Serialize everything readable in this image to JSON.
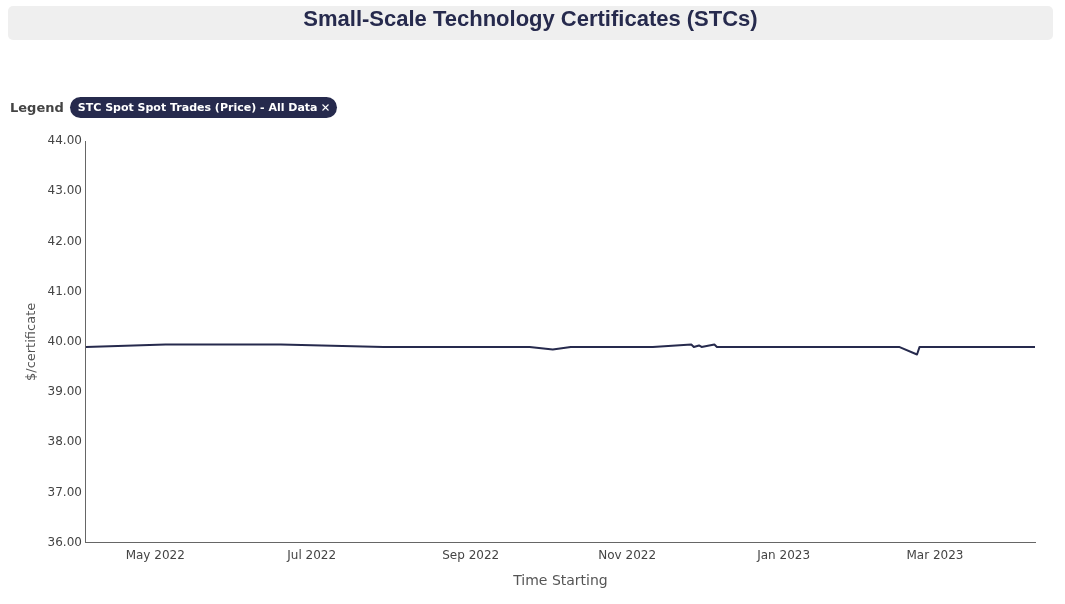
{
  "chart_data": {
    "type": "line",
    "title": "Small-Scale Technology Certificates (STCs)",
    "legend_title": "Legend",
    "xlabel": "Time Starting",
    "ylabel": "$/certificate",
    "x": [
      "2022-04-04",
      "2022-05-05",
      "2022-06-19",
      "2022-07-29",
      "2022-09-24",
      "2022-10-03",
      "2022-10-10",
      "2022-11-11",
      "2022-11-26",
      "2022-11-27",
      "2022-11-29",
      "2022-11-30",
      "2022-12-05",
      "2022-12-06",
      "2023-02-15",
      "2023-02-22",
      "2023-02-23",
      "2023-04-09"
    ],
    "series": [
      {
        "name": "STC Spot Spot Trades (Price) - All Data",
        "color": "#262a4d",
        "values": [
          39.9,
          39.95,
          39.95,
          39.9,
          39.9,
          39.85,
          39.9,
          39.9,
          39.95,
          39.9,
          39.93,
          39.9,
          39.95,
          39.9,
          39.9,
          39.75,
          39.9,
          39.9
        ]
      }
    ],
    "xlim": [
      "2022-04-04",
      "2023-04-09"
    ],
    "xticks": [
      {
        "value": "2022-05-01",
        "label": "May 2022"
      },
      {
        "value": "2022-07-01",
        "label": "Jul 2022"
      },
      {
        "value": "2022-09-01",
        "label": "Sep 2022"
      },
      {
        "value": "2022-11-01",
        "label": "Nov 2022"
      },
      {
        "value": "2023-01-01",
        "label": "Jan 2023"
      },
      {
        "value": "2023-03-01",
        "label": "Mar 2023"
      }
    ],
    "ylim": [
      36,
      44
    ],
    "yticks": [
      {
        "value": 36,
        "label": "36.00"
      },
      {
        "value": 37,
        "label": "37.00"
      },
      {
        "value": 38,
        "label": "38.00"
      },
      {
        "value": 39,
        "label": "39.00"
      },
      {
        "value": 40,
        "label": "40.00"
      },
      {
        "value": 41,
        "label": "41.00"
      },
      {
        "value": 42,
        "label": "42.00"
      },
      {
        "value": 43,
        "label": "43.00"
      },
      {
        "value": 44,
        "label": "44.00"
      }
    ],
    "grid": false,
    "legend": "top left",
    "marker": "none",
    "line_style": "solid"
  }
}
